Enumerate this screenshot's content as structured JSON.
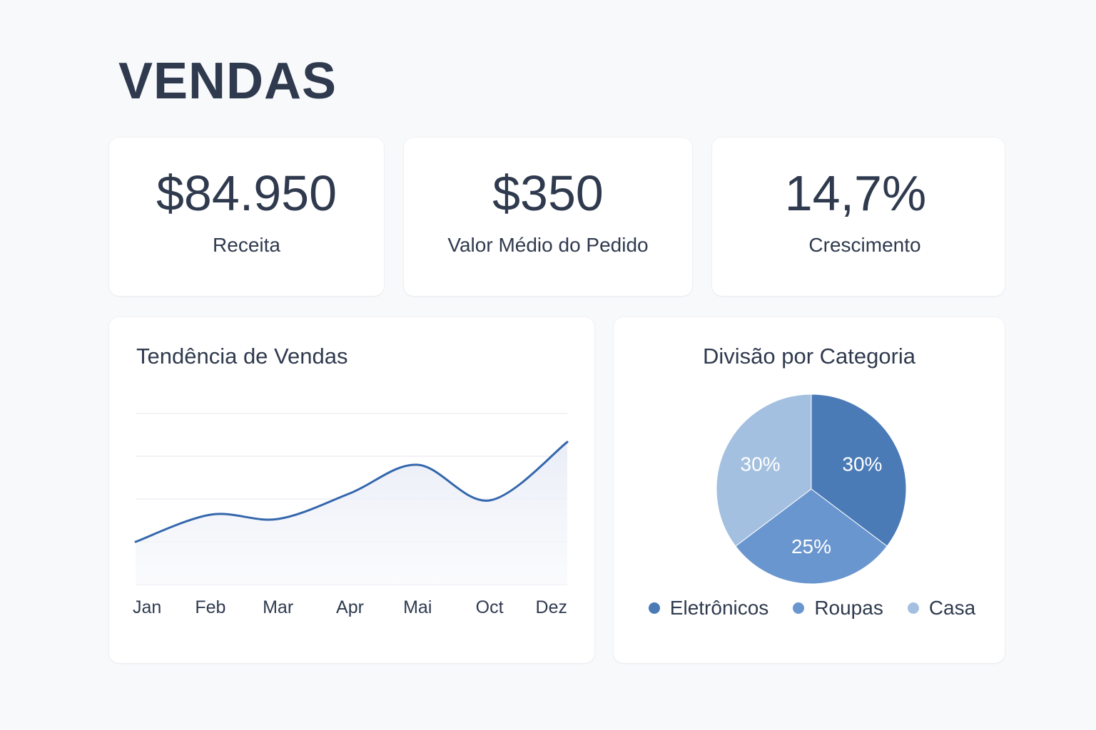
{
  "page": {
    "title": "VENDAS"
  },
  "kpis": [
    {
      "value": "$84.950",
      "label": "Receita"
    },
    {
      "value": "$350",
      "label": "Valor Médio do Pedido"
    },
    {
      "value": "14,7%",
      "label": "Crescimento"
    }
  ],
  "colors": {
    "text": "#2f3a4e",
    "line": "#3467ad",
    "grid": "#e9ecf2",
    "area": "#eef1f8",
    "slice_dark": "#4a7bb7",
    "slice_mid": "#6a96cf",
    "slice_light": "#a4c0e0"
  },
  "chart_data": [
    {
      "type": "line",
      "title": "Tendência de Vendas",
      "categories": [
        "Jan",
        "Feb",
        "Mar",
        "Apr",
        "Mai",
        "Oct",
        "Dez"
      ],
      "x": [
        0,
        1.04,
        1.98,
        2.98,
        3.92,
        4.92,
        6
      ],
      "values": [
        30,
        49,
        46,
        64,
        84,
        59,
        100
      ],
      "ylim": [
        0,
        120
      ],
      "grid": true,
      "xlabel": "",
      "ylabel": ""
    },
    {
      "type": "pie",
      "title": "Divisão por Categoria",
      "labels": [
        "Eletrônicos",
        "Roupas",
        "Casa"
      ],
      "values": [
        30,
        25,
        30
      ],
      "slice_labels": [
        "30%",
        "25%",
        "30%"
      ],
      "colors": [
        "#4a7bb7",
        "#6a96cf",
        "#a4c0e0"
      ],
      "legend": "bottom"
    }
  ]
}
